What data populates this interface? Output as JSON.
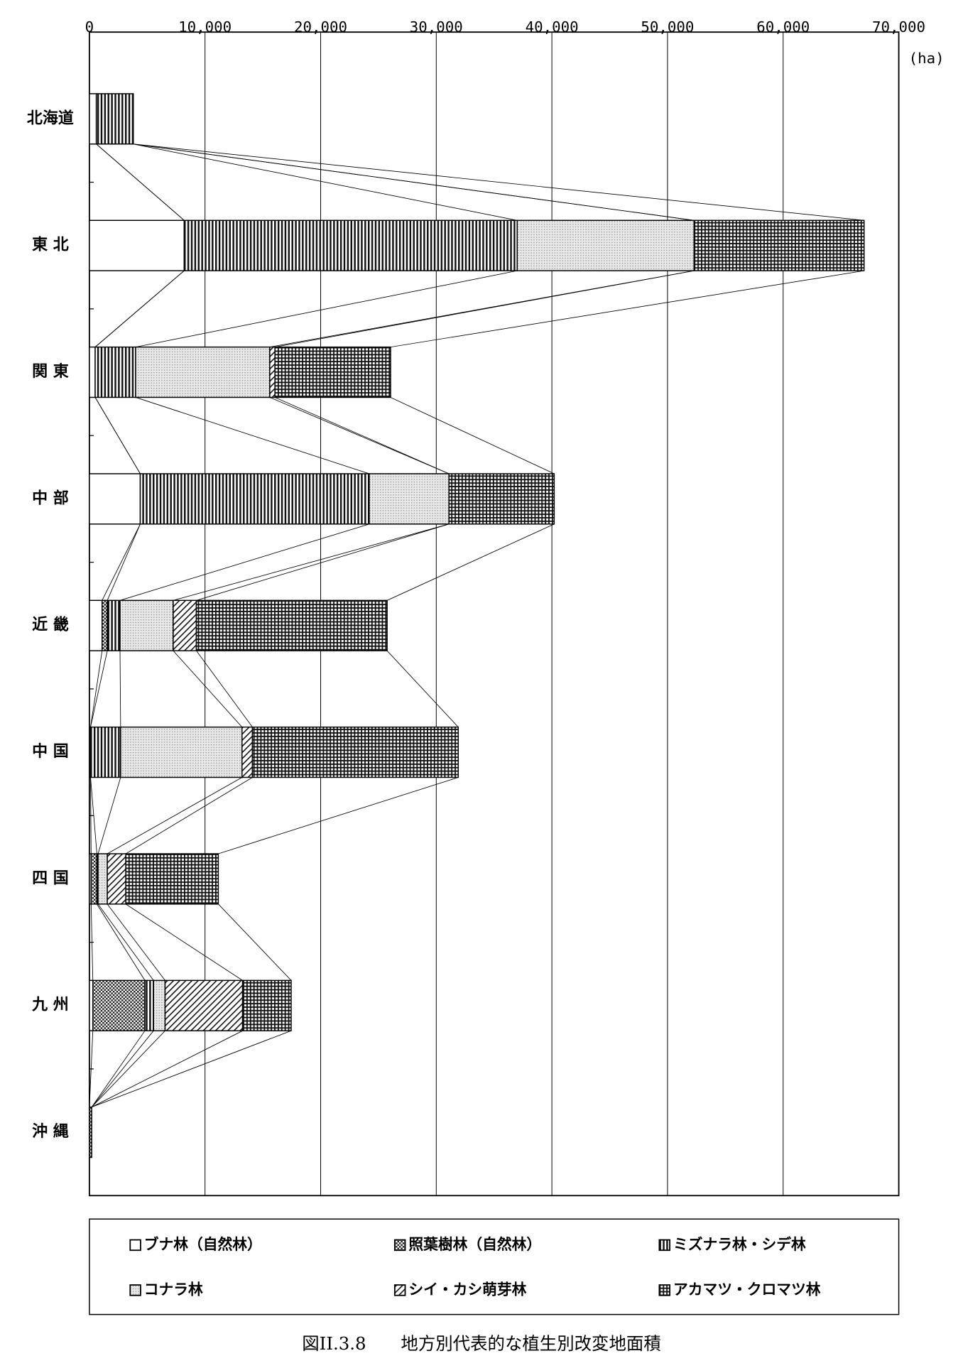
{
  "chart_data": {
    "type": "stacked-barh",
    "title": "図II.3.8　　地方別代表的な植生別改変地面積",
    "x_label": "(ha)",
    "categories": [
      "北海道",
      "東 北",
      "関 東",
      "中 部",
      "近 畿",
      "中 国",
      "四 国",
      "九 州",
      "沖 縄"
    ],
    "series": [
      {
        "name": "ブナ林（自然林）",
        "values": [
          600,
          8200,
          500,
          4400,
          1100,
          100,
          150,
          300,
          0
        ]
      },
      {
        "name": "照葉樹林（自然林）",
        "values": [
          0,
          0,
          0,
          0,
          450,
          0,
          500,
          4500,
          200
        ]
      },
      {
        "name": "ミズナラ林・シデ林",
        "values": [
          3200,
          28800,
          3500,
          19800,
          1100,
          2600,
          100,
          750,
          0
        ]
      },
      {
        "name": "コナラ林",
        "values": [
          0,
          15300,
          11600,
          6900,
          4600,
          10500,
          800,
          1000,
          0
        ]
      },
      {
        "name": "シイ・カシ萌芽林",
        "values": [
          0,
          0,
          450,
          0,
          2000,
          900,
          1600,
          6700,
          0
        ]
      },
      {
        "name": "アカマツ・クロマツ林",
        "values": [
          0,
          14700,
          10000,
          9100,
          16500,
          17800,
          8000,
          4200,
          0
        ]
      }
    ],
    "xlim": [
      0,
      70000
    ],
    "xticks": [
      0,
      {
        "value": 10000,
        "label": "10,000"
      },
      {
        "value": 20000,
        "label": "20,000"
      },
      {
        "value": 30000,
        "label": "30,000"
      },
      {
        "value": 40000,
        "label": "40,000"
      },
      {
        "value": 50000,
        "label": "50,000"
      },
      {
        "value": 60000,
        "label": "60,000"
      },
      {
        "value": 70000,
        "label": "70,000"
      }
    ],
    "grid": true
  }
}
